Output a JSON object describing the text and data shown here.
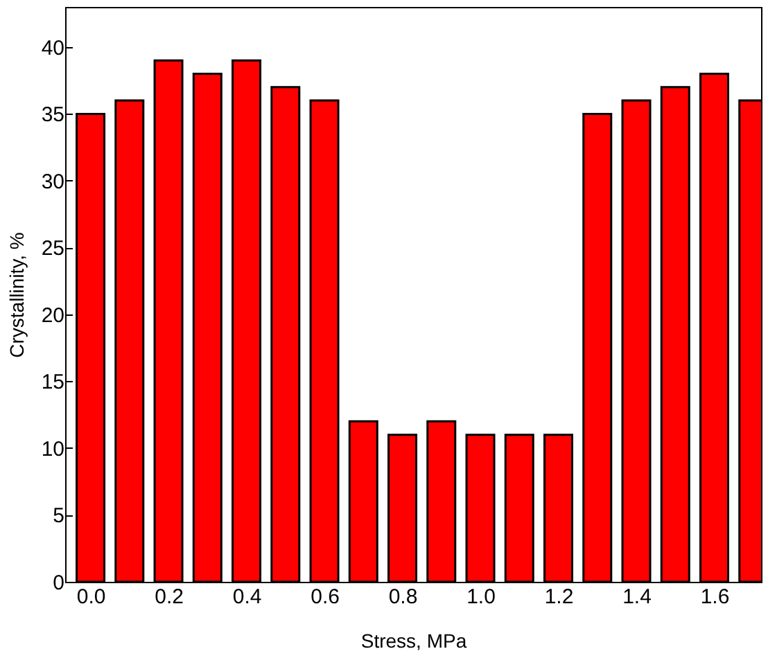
{
  "chart_data": {
    "type": "bar",
    "xlabel": "Stress, MPa",
    "ylabel": "Crystallinity, %",
    "x": [
      0.0,
      0.1,
      0.2,
      0.3,
      0.4,
      0.5,
      0.6,
      0.7,
      0.8,
      0.9,
      1.0,
      1.1,
      1.2,
      1.3,
      1.4,
      1.5,
      1.6,
      1.7
    ],
    "values": [
      35,
      36,
      39,
      38,
      39,
      37,
      36,
      12,
      11,
      12,
      11,
      11,
      11,
      35,
      36,
      37,
      38,
      36
    ],
    "color": "#ff0000",
    "xlim": [
      -0.065,
      1.72
    ],
    "xticks": [
      {
        "value": 0,
        "label": "0.0"
      },
      {
        "value": 0.2,
        "label": "0.2"
      },
      {
        "value": 0.4,
        "label": "0.4"
      },
      {
        "value": 0.6,
        "label": "0.6"
      },
      {
        "value": 0.8,
        "label": "0.8"
      },
      {
        "value": 1,
        "label": "1.0"
      },
      {
        "value": 1.2,
        "label": "1.2"
      },
      {
        "value": 1.4,
        "label": "1.4"
      },
      {
        "value": 1.6,
        "label": "1.6"
      }
    ],
    "ylim": [
      0,
      43
    ],
    "yticks": [
      0,
      5,
      10,
      15,
      20,
      25,
      30,
      35,
      40
    ],
    "grid": false
  }
}
